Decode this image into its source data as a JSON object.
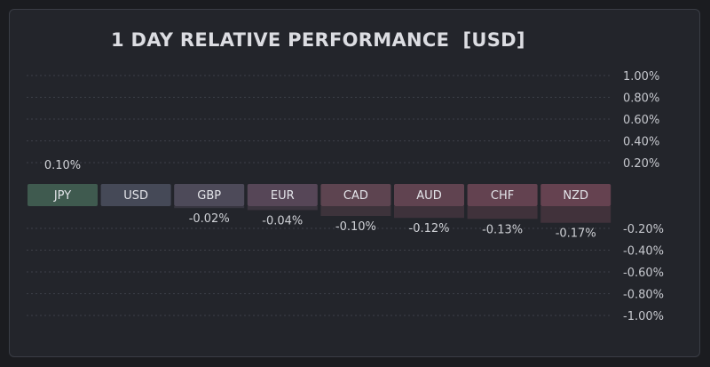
{
  "chart_data": {
    "type": "bar",
    "title": "1 DAY RELATIVE PERFORMANCE  [USD]",
    "categories": [
      "JPY",
      "USD",
      "GBP",
      "EUR",
      "CAD",
      "AUD",
      "CHF",
      "NZD"
    ],
    "values": [
      0.1,
      0.0,
      -0.02,
      -0.04,
      -0.1,
      -0.12,
      -0.13,
      -0.17
    ],
    "value_labels": [
      "0.10%",
      "",
      "-0.02%",
      "-0.04%",
      "-0.10%",
      "-0.12%",
      "-0.13%",
      "-0.17%"
    ],
    "colors": [
      "#3f5a4f",
      "#454957",
      "#4d4a59",
      "#564657",
      "#5d4450",
      "#604350",
      "#634250",
      "#654250"
    ],
    "positive_ticks": [
      "1.00%",
      "0.80%",
      "0.60%",
      "0.40%",
      "0.20%"
    ],
    "negative_ticks": [
      "-0.20%",
      "-0.40%",
      "-0.60%",
      "-0.80%",
      "-1.00%"
    ],
    "ylim": [
      -1.0,
      1.0
    ],
    "grid": true,
    "xlabel": "",
    "ylabel": ""
  }
}
